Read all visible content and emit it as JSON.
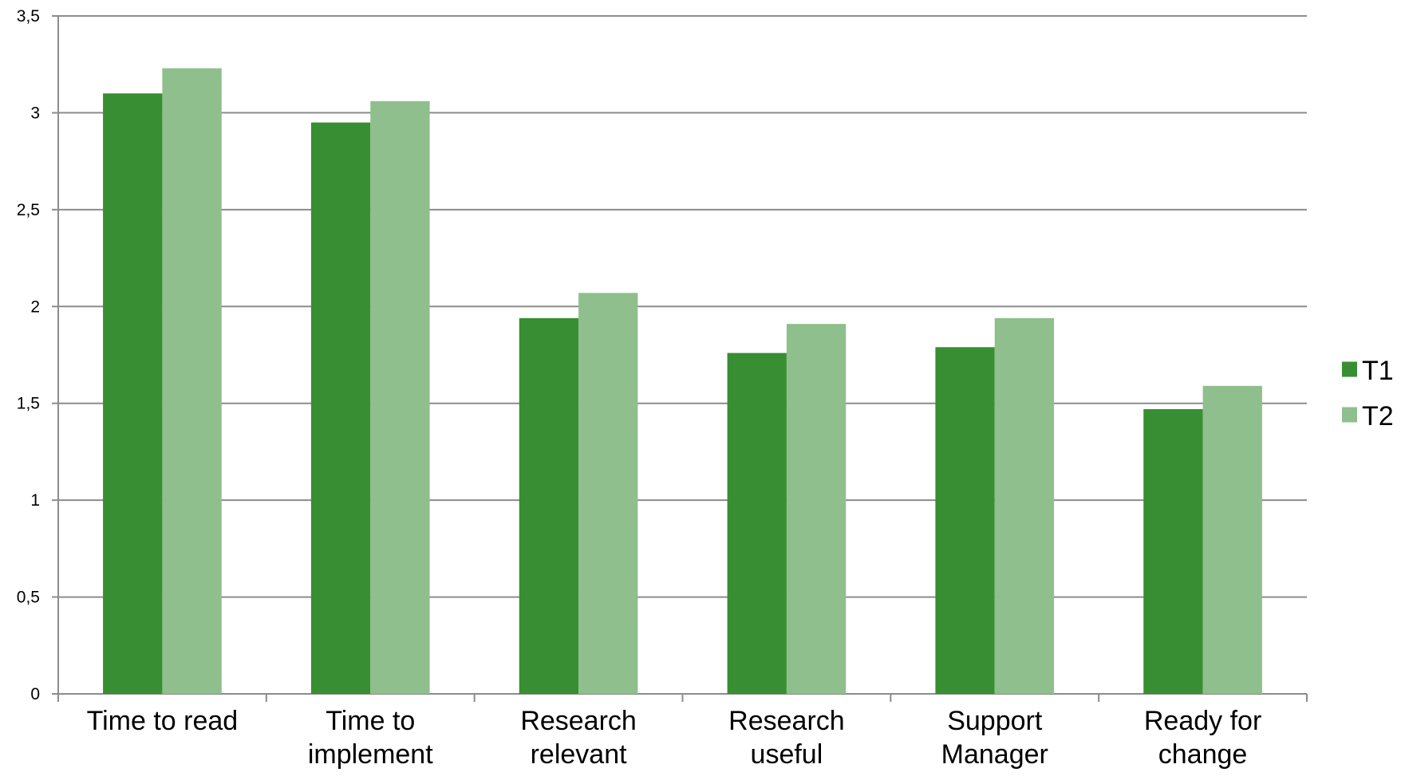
{
  "chart_data": {
    "type": "bar",
    "categories": [
      [
        "Time to read"
      ],
      [
        "Time to",
        "implement"
      ],
      [
        "Research",
        "relevant"
      ],
      [
        "Research",
        "useful"
      ],
      [
        "Support",
        "Manager"
      ],
      [
        "Ready for",
        "change"
      ]
    ],
    "series": [
      {
        "name": "T1",
        "color": "#388e32",
        "values": [
          3.1,
          2.95,
          1.94,
          1.76,
          1.79,
          1.47
        ]
      },
      {
        "name": "T2",
        "color": "#8fbf8c",
        "values": [
          3.23,
          3.06,
          2.07,
          1.91,
          1.94,
          1.59
        ]
      }
    ],
    "ylim": [
      0,
      3.5
    ],
    "yticks": [
      0,
      0.5,
      1,
      1.5,
      2,
      2.5,
      3,
      3.5
    ],
    "ytick_labels": [
      "0",
      "0,5",
      "1",
      "1,5",
      "2",
      "2,5",
      "3",
      "3,5"
    ],
    "grid": true,
    "legend_position": "right",
    "gridline_color": "#8c8c8c",
    "axis_color": "#8c8c8c"
  }
}
